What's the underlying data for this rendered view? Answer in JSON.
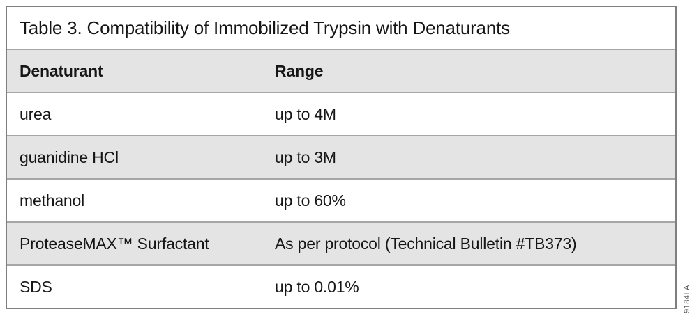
{
  "title": "Table 3. Compatibility of Immobilized Trypsin with Denaturants",
  "table": {
    "columns": [
      "Denaturant",
      "Range"
    ],
    "rows": [
      [
        "urea",
        "up to 4M"
      ],
      [
        "guanidine HCl",
        "up to 3M"
      ],
      [
        "methanol",
        "up to 60%"
      ],
      [
        "ProteaseMAX™ Surfactant",
        "As per protocol (Technical Bulletin #TB373)"
      ],
      [
        "SDS",
        "up to 0.01%"
      ]
    ]
  },
  "figure_number": "9184LA",
  "colors": {
    "shaded_row": "#e4e4e4",
    "outer_border": "#7f7f7f",
    "inner_border": "#a6a6a6",
    "text": "#161616"
  }
}
